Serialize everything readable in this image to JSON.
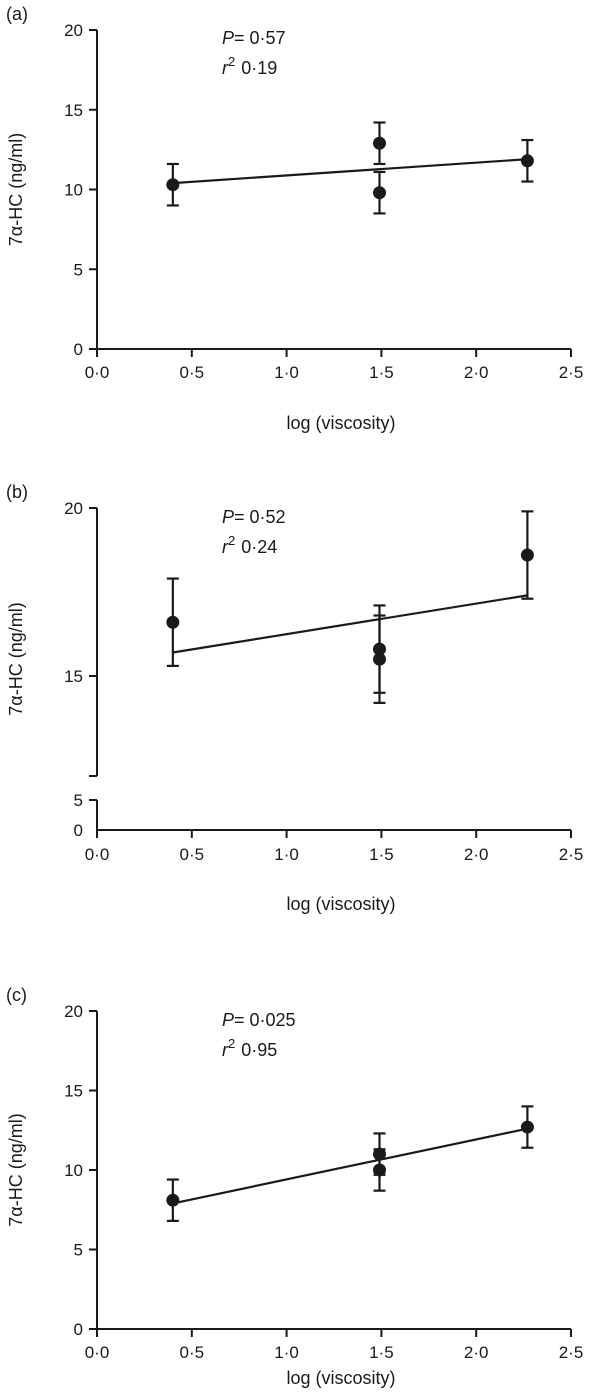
{
  "chart_data": [
    {
      "type": "scatter",
      "panel_label": "(a)",
      "xlabel": "log (viscosity)",
      "ylabel": "7α-HC (ng/ml)",
      "xlim": [
        0,
        2.5
      ],
      "ylim": [
        0,
        20
      ],
      "x_ticks": [
        0,
        0.5,
        1.0,
        1.5,
        2.0,
        2.5
      ],
      "x_tick_labels": [
        "0·0",
        "0·5",
        "1·0",
        "1·5",
        "2·0",
        "2·5"
      ],
      "y_ticks": [
        0,
        5,
        10,
        15,
        20
      ],
      "y_tick_labels": [
        "0",
        "5",
        "10",
        "15",
        "20"
      ],
      "grid": false,
      "points": [
        {
          "x": 0.4,
          "y": 10.3,
          "err": 1.3
        },
        {
          "x": 1.49,
          "y": 12.9,
          "err": 1.3
        },
        {
          "x": 1.49,
          "y": 9.8,
          "err": 1.3
        },
        {
          "x": 2.27,
          "y": 11.8,
          "err": 1.3
        }
      ],
      "fit_line": {
        "x": [
          0.4,
          2.27
        ],
        "y": [
          10.4,
          11.9
        ]
      },
      "stats": {
        "p_label": "P",
        "p_value": "= 0·57",
        "r_label": "r",
        "r_sup": "2",
        "r_value": "0·19"
      }
    },
    {
      "type": "scatter",
      "panel_label": "(b)",
      "xlabel": "log (viscosity)",
      "ylabel": "7α-HC (ng/ml)",
      "xlim": [
        0,
        2.5
      ],
      "ylim": [
        12,
        20
      ],
      "axis_break": true,
      "lower_ticks": [
        0,
        5
      ],
      "lower_tick_labels": [
        "0",
        "5"
      ],
      "x_ticks": [
        0,
        0.5,
        1.0,
        1.5,
        2.0,
        2.5
      ],
      "x_tick_labels": [
        "0·0",
        "0·5",
        "1·0",
        "1·5",
        "2·0",
        "2·5"
      ],
      "y_ticks": [
        15,
        20
      ],
      "y_tick_labels": [
        "15",
        "20"
      ],
      "grid": false,
      "points": [
        {
          "x": 0.4,
          "y": 16.6,
          "err": 1.3
        },
        {
          "x": 1.49,
          "y": 15.8,
          "err": 1.3
        },
        {
          "x": 1.49,
          "y": 15.5,
          "err": 1.3
        },
        {
          "x": 2.27,
          "y": 18.6,
          "err": 1.3
        }
      ],
      "fit_line": {
        "x": [
          0.4,
          2.27
        ],
        "y": [
          15.7,
          17.4
        ]
      },
      "stats": {
        "p_label": "P",
        "p_value": "= 0·52",
        "r_label": "r",
        "r_sup": "2",
        "r_value": "0·24"
      }
    },
    {
      "type": "scatter",
      "panel_label": "(c)",
      "xlabel": "log (viscosity)",
      "ylabel": "7α-HC (ng/ml)",
      "xlim": [
        0,
        2.5
      ],
      "ylim": [
        0,
        20
      ],
      "x_ticks": [
        0,
        0.5,
        1.0,
        1.5,
        2.0,
        2.5
      ],
      "x_tick_labels": [
        "0·0",
        "0·5",
        "1·0",
        "1·5",
        "2·0",
        "2·5"
      ],
      "y_ticks": [
        0,
        5,
        10,
        15,
        20
      ],
      "y_tick_labels": [
        "0",
        "5",
        "10",
        "15",
        "20"
      ],
      "grid": false,
      "points": [
        {
          "x": 0.4,
          "y": 8.1,
          "err": 1.3
        },
        {
          "x": 1.49,
          "y": 11.0,
          "err": 1.3
        },
        {
          "x": 1.49,
          "y": 10.0,
          "err": 1.3
        },
        {
          "x": 2.27,
          "y": 12.7,
          "err": 1.3
        }
      ],
      "fit_line": {
        "x": [
          0.4,
          2.27
        ],
        "y": [
          7.9,
          12.6
        ]
      },
      "stats": {
        "p_label": "P",
        "p_value": "= 0·025",
        "r_label": "r",
        "r_sup": "2",
        "r_value": "0·95"
      }
    }
  ]
}
